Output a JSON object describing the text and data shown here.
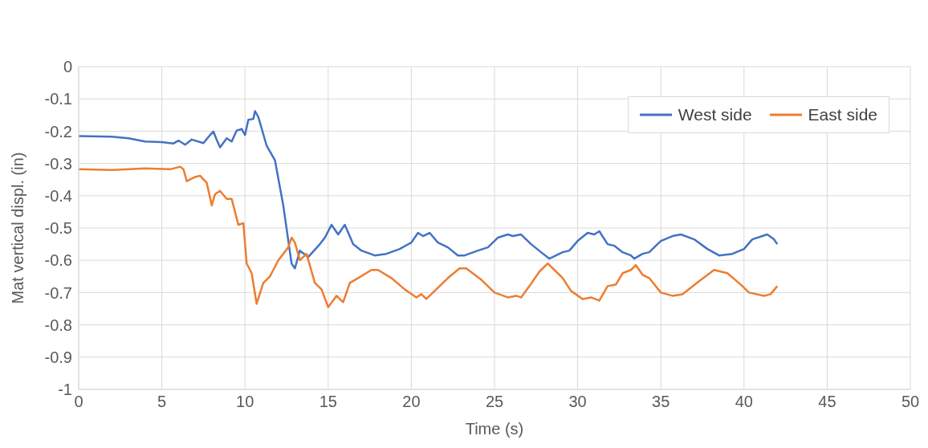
{
  "chart_data": {
    "type": "line",
    "xlabel": "Time (s)",
    "ylabel": "Mat vertical displ. (in)",
    "xlim": [
      0,
      50
    ],
    "xticks": [
      0,
      5,
      10,
      15,
      20,
      25,
      30,
      35,
      40,
      45,
      50
    ],
    "ylim": [
      -1,
      0
    ],
    "yticks": [
      -1,
      -0.9,
      -0.8,
      -0.7,
      -0.6,
      -0.5,
      -0.4,
      -0.3,
      -0.2,
      -0.1,
      0
    ],
    "grid": true,
    "legend": "right",
    "marker": "none",
    "line_style": "solid",
    "series": [
      {
        "name": "West side",
        "color": "#4472c4",
        "x": [
          0,
          2,
          3,
          4,
          5,
          5.7,
          6,
          6.4,
          6.8,
          7.5,
          7.9,
          8.1,
          8.3,
          8.5,
          8.9,
          9.2,
          9.5,
          9.8,
          10,
          10.2,
          10.5,
          10.6,
          10.8,
          11.3,
          11.8,
          12.3,
          12.8,
          13,
          13.3,
          13.8,
          14.5,
          14.8,
          15.2,
          15.6,
          16,
          16.5,
          17,
          17.8,
          18.5,
          19.3,
          20,
          20.4,
          20.7,
          21.1,
          21.6,
          22.2,
          22.8,
          23.2,
          24,
          24.6,
          25.2,
          25.8,
          26.1,
          26.6,
          27.2,
          27.8,
          28.3,
          28.7,
          29.1,
          29.5,
          30,
          30.6,
          31,
          31.3,
          31.8,
          32.2,
          32.7,
          33.2,
          33.4,
          33.9,
          34.3,
          35,
          35.7,
          36.2,
          37,
          37.8,
          38.5,
          39.3,
          40,
          40.5,
          41.1,
          41.4,
          41.8,
          42
        ],
        "values": [
          -0.215,
          -0.217,
          -0.222,
          -0.232,
          -0.234,
          -0.238,
          -0.229,
          -0.242,
          -0.226,
          -0.237,
          -0.212,
          -0.201,
          -0.227,
          -0.25,
          -0.222,
          -0.232,
          -0.198,
          -0.193,
          -0.212,
          -0.165,
          -0.162,
          -0.138,
          -0.156,
          -0.245,
          -0.29,
          -0.43,
          -0.61,
          -0.625,
          -0.57,
          -0.59,
          -0.55,
          -0.53,
          -0.49,
          -0.52,
          -0.49,
          -0.55,
          -0.57,
          -0.585,
          -0.58,
          -0.565,
          -0.545,
          -0.515,
          -0.525,
          -0.515,
          -0.545,
          -0.56,
          -0.585,
          -0.585,
          -0.57,
          -0.56,
          -0.53,
          -0.52,
          -0.525,
          -0.52,
          -0.55,
          -0.575,
          -0.595,
          -0.585,
          -0.575,
          -0.57,
          -0.54,
          -0.515,
          -0.52,
          -0.51,
          -0.55,
          -0.555,
          -0.575,
          -0.585,
          -0.595,
          -0.58,
          -0.575,
          -0.54,
          -0.525,
          -0.52,
          -0.535,
          -0.565,
          -0.585,
          -0.58,
          -0.565,
          -0.535,
          -0.525,
          -0.52,
          -0.535,
          -0.55
        ]
      },
      {
        "name": "East side",
        "color": "#ed7d31",
        "x": [
          0,
          2,
          4,
          5.5,
          6.1,
          6.3,
          6.5,
          7,
          7.3,
          7.7,
          8,
          8.2,
          8.5,
          8.9,
          9.2,
          9.6,
          9.9,
          10.1,
          10.4,
          10.7,
          11.1,
          11.5,
          12,
          12.6,
          12.8,
          13,
          13.3,
          13.7,
          14.2,
          14.6,
          15,
          15.5,
          15.9,
          16.3,
          16.8,
          17.6,
          18,
          18.8,
          19.6,
          20.3,
          20.6,
          20.9,
          21.5,
          22.2,
          22.9,
          23.3,
          24.2,
          25,
          25.8,
          26.3,
          26.6,
          27.1,
          27.7,
          28.2,
          28.7,
          29.1,
          29.6,
          30.3,
          30.8,
          31.3,
          31.8,
          32.3,
          32.7,
          33.2,
          33.5,
          33.9,
          34.3,
          35,
          35.7,
          36.3,
          37.3,
          38.2,
          39,
          39.8,
          40.3,
          41.2,
          41.6,
          42
        ],
        "values": [
          -0.318,
          -0.32,
          -0.315,
          -0.318,
          -0.31,
          -0.318,
          -0.355,
          -0.342,
          -0.338,
          -0.36,
          -0.43,
          -0.395,
          -0.385,
          -0.41,
          -0.41,
          -0.49,
          -0.485,
          -0.61,
          -0.64,
          -0.735,
          -0.67,
          -0.65,
          -0.6,
          -0.56,
          -0.53,
          -0.545,
          -0.6,
          -0.58,
          -0.67,
          -0.69,
          -0.745,
          -0.71,
          -0.73,
          -0.67,
          -0.655,
          -0.63,
          -0.63,
          -0.655,
          -0.69,
          -0.715,
          -0.705,
          -0.72,
          -0.69,
          -0.655,
          -0.625,
          -0.625,
          -0.66,
          -0.7,
          -0.715,
          -0.71,
          -0.715,
          -0.68,
          -0.635,
          -0.61,
          -0.635,
          -0.655,
          -0.695,
          -0.72,
          -0.715,
          -0.725,
          -0.68,
          -0.675,
          -0.64,
          -0.63,
          -0.615,
          -0.645,
          -0.655,
          -0.7,
          -0.71,
          -0.705,
          -0.665,
          -0.63,
          -0.64,
          -0.675,
          -0.7,
          -0.71,
          -0.705,
          -0.68
        ]
      }
    ]
  }
}
